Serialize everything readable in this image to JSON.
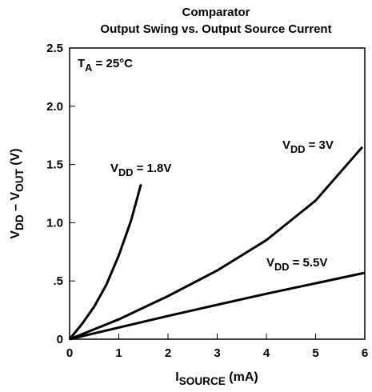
{
  "chart_data": {
    "type": "line",
    "title": [
      "Comparator",
      "Output Swing vs. Output Source Current"
    ],
    "xlabel": [
      "I",
      "SOURCE",
      " (mA)"
    ],
    "ylabel": [
      "V",
      "DD",
      " – V",
      "OUT",
      " (V)"
    ],
    "annotation": [
      "T",
      "A",
      " = 25°C"
    ],
    "xlim": [
      0,
      6
    ],
    "xticks": [
      0,
      1,
      2,
      3,
      4,
      5,
      6
    ],
    "ylim": [
      0,
      2.5
    ],
    "yticks": [
      0,
      {
        "value": 0.5,
        "label": ".5"
      },
      {
        "value": 1.0,
        "label": "1.0"
      },
      {
        "value": 1.5,
        "label": "1.5"
      },
      {
        "value": 2.0,
        "label": "2.0"
      },
      {
        "value": 2.5,
        "label": "2.5"
      }
    ],
    "grid": true,
    "series": [
      {
        "label": [
          "V",
          "DD",
          " = 1.8V"
        ],
        "color": "#000000",
        "x": [
          0,
          0.25,
          0.5,
          0.75,
          1.0,
          1.25,
          1.45
        ],
        "values": [
          0,
          0.13,
          0.28,
          0.47,
          0.72,
          1.02,
          1.33
        ]
      },
      {
        "label": [
          "V",
          "DD",
          " = 3V"
        ],
        "color": "#000000",
        "x": [
          0,
          1,
          2,
          3,
          4,
          5,
          5.95
        ],
        "values": [
          0,
          0.17,
          0.37,
          0.59,
          0.85,
          1.19,
          1.65
        ]
      },
      {
        "label": [
          "V",
          "DD",
          " = 5.5V"
        ],
        "color": "#000000",
        "x": [
          0,
          1,
          2,
          3,
          4,
          5,
          6
        ],
        "values": [
          0,
          0.1,
          0.2,
          0.295,
          0.39,
          0.48,
          0.57
        ]
      }
    ]
  }
}
